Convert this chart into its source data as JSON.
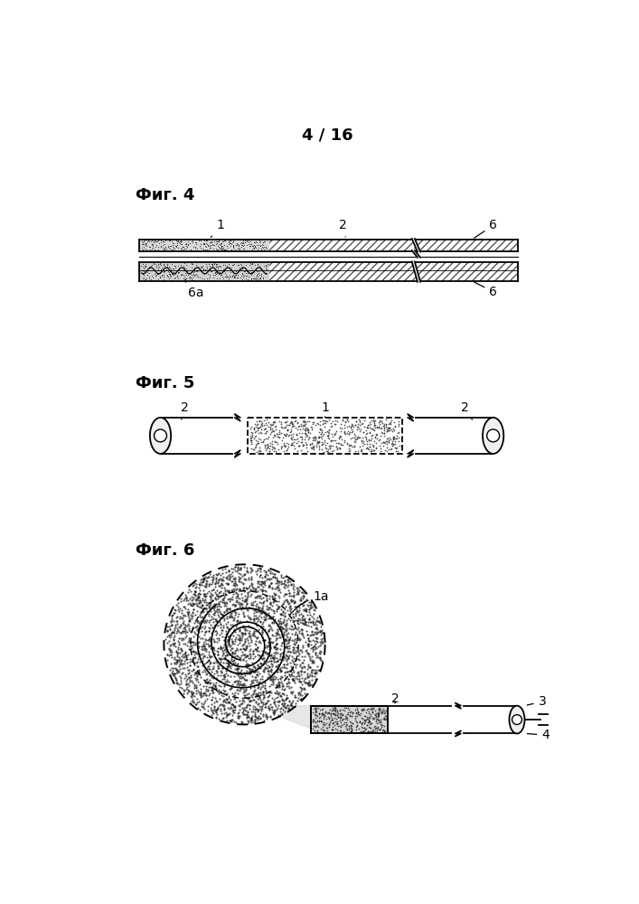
{
  "page_label": "4 / 16",
  "fig4_label": "Фиг. 4",
  "fig5_label": "Фиг. 5",
  "fig6_label": "Фиг. 6",
  "bg_color": "#ffffff",
  "line_color": "#000000"
}
